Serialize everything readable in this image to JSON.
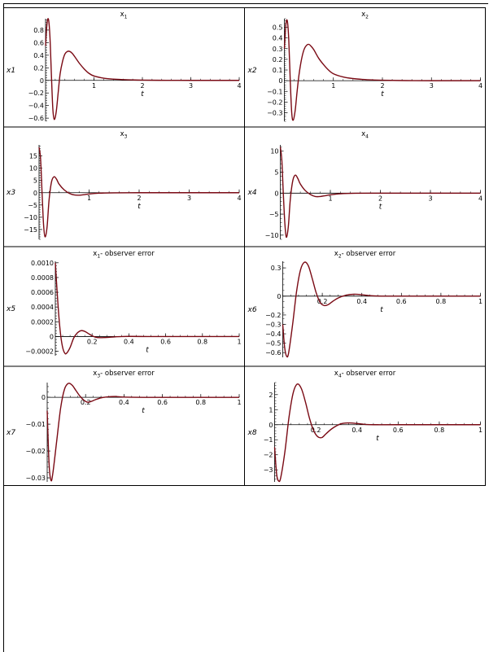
{
  "chart_data": [
    {
      "type": "line",
      "title": "x1",
      "title_main": "x",
      "title_sub": "1",
      "title_suffix": "",
      "xlabel": "t",
      "ylabel": "x1",
      "xlim": [
        0,
        4
      ],
      "ylim": [
        -0.65,
        0.98
      ],
      "xticks": [
        1,
        2,
        3,
        4
      ],
      "xtick_labels": [
        "1",
        "2",
        "3",
        "4"
      ],
      "yticks": [
        0.8,
        0.6,
        0.4,
        0.2,
        0,
        -0.2,
        -0.4,
        -0.6
      ],
      "ytick_labels": [
        "0.8",
        "0.6",
        "0.4",
        "0.2",
        "0",
        "−0.2",
        "−0.4",
        "−0.6"
      ],
      "grid": false,
      "line_color": "#7a0a14",
      "series": [
        {
          "x": [
            0,
            0.03,
            0.06,
            0.09,
            0.12,
            0.15,
            0.18,
            0.22,
            0.26,
            0.3,
            0.35,
            0.4,
            0.45,
            0.5,
            0.55,
            0.6,
            0.7,
            0.8,
            0.9,
            1.0,
            1.2,
            1.4,
            1.6,
            1.8,
            2.0,
            2.5,
            3.0,
            3.5,
            4.0
          ],
          "y": [
            0.55,
            0.9,
            0.97,
            0.7,
            0.1,
            -0.45,
            -0.62,
            -0.5,
            -0.2,
            0.1,
            0.3,
            0.42,
            0.46,
            0.46,
            0.43,
            0.38,
            0.27,
            0.18,
            0.11,
            0.07,
            0.035,
            0.02,
            0.012,
            0.007,
            0.004,
            0.001,
            0.0,
            0.0,
            0.0
          ]
        }
      ]
    },
    {
      "type": "line",
      "title": "x2",
      "title_main": "x",
      "title_sub": "2",
      "title_suffix": "",
      "xlabel": "t",
      "ylabel": "x2",
      "xlim": [
        0,
        4
      ],
      "ylim": [
        -0.38,
        0.58
      ],
      "xticks": [
        1,
        2,
        3,
        4
      ],
      "xtick_labels": [
        "1",
        "2",
        "3",
        "4"
      ],
      "yticks": [
        0.5,
        0.4,
        0.3,
        0.2,
        0.1,
        0,
        -0.1,
        -0.2,
        -0.3
      ],
      "ytick_labels": [
        "0.5",
        "0.4",
        "0.3",
        "0.2",
        "0.1",
        "0",
        "−0.1",
        "−0.2",
        "−0.3"
      ],
      "grid": false,
      "line_color": "#7a0a14",
      "series": [
        {
          "x": [
            0,
            0.03,
            0.06,
            0.09,
            0.12,
            0.15,
            0.18,
            0.22,
            0.26,
            0.3,
            0.35,
            0.4,
            0.45,
            0.5,
            0.55,
            0.6,
            0.7,
            0.8,
            0.9,
            1.0,
            1.2,
            1.4,
            1.6,
            1.8,
            2.0,
            2.5,
            3.0,
            3.5,
            4.0
          ],
          "y": [
            0.3,
            0.52,
            0.56,
            0.38,
            0.0,
            -0.3,
            -0.37,
            -0.28,
            -0.1,
            0.06,
            0.2,
            0.29,
            0.33,
            0.34,
            0.32,
            0.29,
            0.21,
            0.15,
            0.1,
            0.065,
            0.035,
            0.02,
            0.012,
            0.007,
            0.004,
            0.001,
            0.0,
            0.0,
            0.0
          ]
        }
      ]
    },
    {
      "type": "line",
      "title": "x3",
      "title_main": "x",
      "title_sub": "3",
      "title_suffix": "",
      "xlabel": "t",
      "ylabel": "x3",
      "xlim": [
        0,
        4
      ],
      "ylim": [
        -19,
        19.5
      ],
      "xticks": [
        1,
        2,
        3,
        4
      ],
      "xtick_labels": [
        "1",
        "2",
        "3",
        "4"
      ],
      "yticks": [
        15,
        10,
        5,
        0,
        -5,
        -10,
        -15
      ],
      "ytick_labels": [
        "15",
        "10",
        "5",
        "0",
        "−5",
        "−10",
        "−15"
      ],
      "grid": false,
      "line_color": "#7a0a14",
      "series": [
        {
          "x": [
            0,
            0.03,
            0.06,
            0.09,
            0.12,
            0.16,
            0.2,
            0.25,
            0.3,
            0.35,
            0.4,
            0.5,
            0.6,
            0.7,
            0.8,
            0.9,
            1.0,
            1.2,
            1.5,
            2.0,
            2.5,
            3.0,
            3.5,
            4.0
          ],
          "y": [
            18.5,
            14,
            0,
            -13,
            -18,
            -14,
            -3,
            4.5,
            6.5,
            5.5,
            3.5,
            1.2,
            -0.2,
            -0.9,
            -1.0,
            -0.8,
            -0.5,
            -0.2,
            -0.05,
            0.0,
            0.0,
            0.0,
            0.0,
            0.0
          ]
        }
      ]
    },
    {
      "type": "line",
      "title": "x4",
      "title_main": "x",
      "title_sub": "4",
      "title_suffix": "",
      "xlabel": "t",
      "ylabel": "x4",
      "xlim": [
        0,
        4
      ],
      "ylim": [
        -11,
        11.5
      ],
      "xticks": [
        1,
        2,
        3,
        4
      ],
      "xtick_labels": [
        "1",
        "2",
        "3",
        "4"
      ],
      "yticks": [
        10,
        5,
        0,
        -5,
        -10
      ],
      "ytick_labels": [
        "10",
        "5",
        "0",
        "−5",
        "−10"
      ],
      "grid": false,
      "line_color": "#7a0a14",
      "series": [
        {
          "x": [
            0,
            0.03,
            0.06,
            0.09,
            0.12,
            0.16,
            0.2,
            0.25,
            0.3,
            0.35,
            0.4,
            0.5,
            0.6,
            0.7,
            0.8,
            0.9,
            1.0,
            1.2,
            1.5,
            2.0,
            2.5,
            3.0,
            3.5,
            4.0
          ],
          "y": [
            11,
            8,
            0,
            -7,
            -10.5,
            -8,
            -1.5,
            3,
            4.3,
            3.5,
            2.2,
            0.6,
            -0.3,
            -0.8,
            -0.8,
            -0.6,
            -0.4,
            -0.15,
            -0.03,
            0.0,
            0.0,
            0.0,
            0.0,
            0.0
          ]
        }
      ]
    },
    {
      "type": "line",
      "title": "x1- observer error",
      "title_main": "x",
      "title_sub": "1",
      "title_suffix": "- observer error",
      "xlabel": "t",
      "ylabel": "x5",
      "xlim": [
        0,
        1
      ],
      "ylim": [
        -0.00026,
        0.00102
      ],
      "xticks": [
        0.2,
        0.4,
        0.6,
        0.8,
        1
      ],
      "xtick_labels": [
        "0.2",
        "0.4",
        "0.6",
        "0.8",
        "1"
      ],
      "yticks": [
        0.001,
        0.0008,
        0.0006,
        0.0004,
        0.0002,
        0,
        -0.0002
      ],
      "ytick_labels": [
        "0.0010",
        "0.0008",
        "0.0006",
        "0.0004",
        "0.0002",
        "0",
        "−0.0002"
      ],
      "grid": false,
      "line_color": "#7a0a14",
      "series": [
        {
          "x": [
            0,
            0.01,
            0.02,
            0.03,
            0.04,
            0.05,
            0.06,
            0.08,
            0.1,
            0.12,
            0.14,
            0.16,
            0.18,
            0.2,
            0.22,
            0.24,
            0.28,
            0.32,
            0.36,
            0.4,
            0.5,
            0.6,
            0.8,
            1.0
          ],
          "y": [
            0.001,
            0.0006,
            0.00025,
            0.0,
            -0.00015,
            -0.00022,
            -0.00023,
            -0.00015,
            -2e-05,
            5e-05,
            8e-05,
            7e-05,
            4e-05,
            1e-05,
            -1e-05,
            -1.5e-05,
            -1.2e-05,
            -5e-06,
            0.0,
            2e-06,
            0.0,
            0.0,
            0.0,
            0.0
          ]
        }
      ]
    },
    {
      "type": "line",
      "title": "x2- observer error",
      "title_main": "x",
      "title_sub": "2",
      "title_suffix": "- observer error",
      "xlabel": "t",
      "ylabel": "x6",
      "xlim": [
        0,
        1
      ],
      "ylim": [
        -0.65,
        0.37
      ],
      "xticks": [
        0.2,
        0.4,
        0.6,
        0.8,
        1
      ],
      "xtick_labels": [
        "0.2",
        "0.4",
        "0.6",
        "0.8",
        "1"
      ],
      "yticks": [
        0.3,
        0,
        -0.2,
        -0.3,
        -0.4,
        -0.5,
        -0.6
      ],
      "ytick_labels": [
        "0.3",
        "0",
        "−0.2",
        "−0.3",
        "−0.4",
        "−0.5",
        "−0.6"
      ],
      "grid": false,
      "line_color": "#7a0a14",
      "series": [
        {
          "x": [
            0,
            0.01,
            0.02,
            0.03,
            0.05,
            0.07,
            0.09,
            0.11,
            0.13,
            0.15,
            0.17,
            0.19,
            0.21,
            0.23,
            0.25,
            0.28,
            0.32,
            0.36,
            0.4,
            0.44,
            0.5,
            0.6,
            0.8,
            1.0
          ],
          "y": [
            -0.3,
            -0.55,
            -0.64,
            -0.6,
            -0.3,
            0.05,
            0.28,
            0.36,
            0.32,
            0.18,
            0.03,
            -0.07,
            -0.1,
            -0.09,
            -0.06,
            -0.02,
            0.01,
            0.02,
            0.015,
            0.005,
            0.0,
            0.0,
            0.0,
            0.0
          ]
        }
      ]
    },
    {
      "type": "line",
      "title": "x3- observer error",
      "title_main": "x",
      "title_sub": "3",
      "title_suffix": "- observer error",
      "xlabel": "t",
      "ylabel": "x7",
      "xlim": [
        0,
        1
      ],
      "ylim": [
        -0.0315,
        0.0055
      ],
      "xticks": [
        0.2,
        0.4,
        0.6,
        0.8,
        1
      ],
      "xtick_labels": [
        "0.2",
        "0.4",
        "0.6",
        "0.8",
        "1"
      ],
      "yticks": [
        0,
        -0.01,
        -0.02,
        -0.03
      ],
      "ytick_labels": [
        "0",
        "−0.01",
        "−0.02",
        "−0.03"
      ],
      "grid": false,
      "line_color": "#7a0a14",
      "series": [
        {
          "x": [
            0,
            0.01,
            0.02,
            0.03,
            0.05,
            0.07,
            0.09,
            0.11,
            0.13,
            0.15,
            0.17,
            0.19,
            0.21,
            0.23,
            0.25,
            0.28,
            0.32,
            0.36,
            0.4,
            0.5,
            0.6,
            0.8,
            1.0
          ],
          "y": [
            -0.005,
            -0.025,
            -0.031,
            -0.028,
            -0.016,
            -0.004,
            0.003,
            0.0052,
            0.0045,
            0.0025,
            0.0005,
            -0.001,
            -0.0018,
            -0.0015,
            -0.0009,
            -0.0002,
            0.0002,
            0.0003,
            0.0001,
            0.0,
            0.0,
            0.0,
            0.0
          ]
        }
      ]
    },
    {
      "type": "line",
      "title": "x4- observer error",
      "title_main": "x",
      "title_sub": "4",
      "title_suffix": "- observer error",
      "xlabel": "t",
      "ylabel": "x8",
      "xlim": [
        0,
        1
      ],
      "ylim": [
        -3.8,
        2.8
      ],
      "xticks": [
        0.2,
        0.4,
        0.6,
        0.8,
        1
      ],
      "xtick_labels": [
        "0.2",
        "0.4",
        "0.6",
        "0.8",
        "1"
      ],
      "yticks": [
        2,
        1,
        0,
        -1,
        -2,
        -3
      ],
      "ytick_labels": [
        "2",
        "1",
        "0",
        "−1",
        "−2",
        "−3"
      ],
      "grid": false,
      "line_color": "#7a0a14",
      "series": [
        {
          "x": [
            0,
            0.01,
            0.02,
            0.03,
            0.05,
            0.07,
            0.09,
            0.11,
            0.13,
            0.15,
            0.17,
            0.19,
            0.21,
            0.23,
            0.25,
            0.28,
            0.32,
            0.36,
            0.4,
            0.44,
            0.5,
            0.6,
            0.8,
            1.0
          ],
          "y": [
            -1.5,
            -3.3,
            -3.75,
            -3.5,
            -1.8,
            0.5,
            2.1,
            2.7,
            2.4,
            1.5,
            0.4,
            -0.4,
            -0.8,
            -0.85,
            -0.6,
            -0.25,
            0.05,
            0.12,
            0.08,
            0.02,
            0.0,
            0.0,
            0.0,
            0.0
          ]
        }
      ]
    }
  ]
}
